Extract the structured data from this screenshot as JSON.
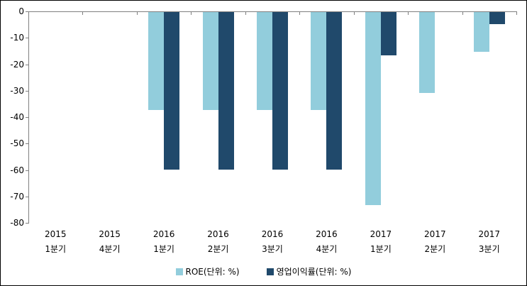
{
  "chart_data": {
    "type": "bar",
    "title": "",
    "categories": [
      {
        "line1": "2015",
        "line2": "1분기"
      },
      {
        "line1": "2015",
        "line2": "4분기"
      },
      {
        "line1": "2016",
        "line2": "1분기"
      },
      {
        "line1": "2016",
        "line2": "2분기"
      },
      {
        "line1": "2016",
        "line2": "3분기"
      },
      {
        "line1": "2016",
        "line2": "4분기"
      },
      {
        "line1": "2017",
        "line2": "1분기"
      },
      {
        "line1": "2017",
        "line2": "2분기"
      },
      {
        "line1": "2017",
        "line2": "3분기"
      }
    ],
    "series": [
      {
        "name": "ROE(단위: %)",
        "color": "#92CDDC",
        "values": [
          null,
          null,
          -37,
          -37,
          -37,
          -37,
          -73,
          -30.5,
          -15
        ]
      },
      {
        "name": "영업이익률(단위: %)",
        "color": "#20496B",
        "values": [
          null,
          null,
          -59.5,
          -59.5,
          -59.5,
          -59.5,
          -16.5,
          null,
          -4.5
        ]
      }
    ],
    "ylim": [
      -80,
      0
    ],
    "yticks": [
      0,
      -10,
      -20,
      -30,
      -40,
      -50,
      -60,
      -70,
      -80
    ],
    "ytick_labels": [
      "0",
      "-10",
      "-20",
      "-30",
      "-40",
      "-50",
      "-60",
      "-70",
      "-80"
    ],
    "grid": false,
    "legend_position": "bottom",
    "axis_color": "#808080",
    "background_color": "#FFFFFF",
    "border_color": "#000000"
  }
}
